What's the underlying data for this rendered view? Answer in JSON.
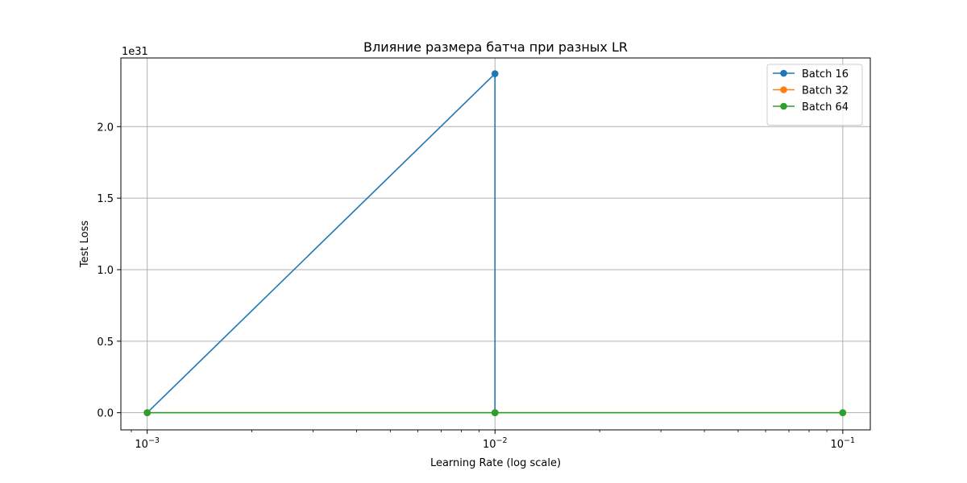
{
  "chart_data": {
    "type": "line",
    "title": "Влияние размера батча при разных LR",
    "xlabel": "Learning Rate (log scale)",
    "ylabel": "Test Loss",
    "xscale": "log",
    "xlim": [
      0.00084,
      0.12
    ],
    "ylim": [
      -1.2e+30,
      2.48e+31
    ],
    "y_offset_label": "1e31",
    "x_ticks": [
      {
        "value": 0.001,
        "base": "10",
        "exp": "−3"
      },
      {
        "value": 0.01,
        "base": "10",
        "exp": "−2"
      },
      {
        "value": 0.1,
        "base": "10",
        "exp": "−1"
      }
    ],
    "y_ticks": [
      {
        "value": 0,
        "label": "0.0"
      },
      {
        "value": 5e+30,
        "label": "0.5"
      },
      {
        "value": 1e+31,
        "label": "1.0"
      },
      {
        "value": 1.5e+31,
        "label": "1.5"
      },
      {
        "value": 2e+31,
        "label": "2.0"
      }
    ],
    "grid": true,
    "legend_position": "top-right",
    "series": [
      {
        "name": "Batch 16",
        "color": "#1f77b4",
        "points": [
          [
            0.001,
            0
          ],
          [
            0.01,
            2.37e+31
          ],
          [
            0.01,
            0
          ]
        ]
      },
      {
        "name": "Batch 32",
        "color": "#ff7f0e",
        "points": [
          [
            0.001,
            0
          ],
          [
            0.01,
            0
          ],
          [
            0.1,
            0
          ]
        ]
      },
      {
        "name": "Batch 64",
        "color": "#2ca02c",
        "points": [
          [
            0.001,
            0
          ],
          [
            0.01,
            0
          ],
          [
            0.1,
            0
          ]
        ]
      }
    ]
  }
}
